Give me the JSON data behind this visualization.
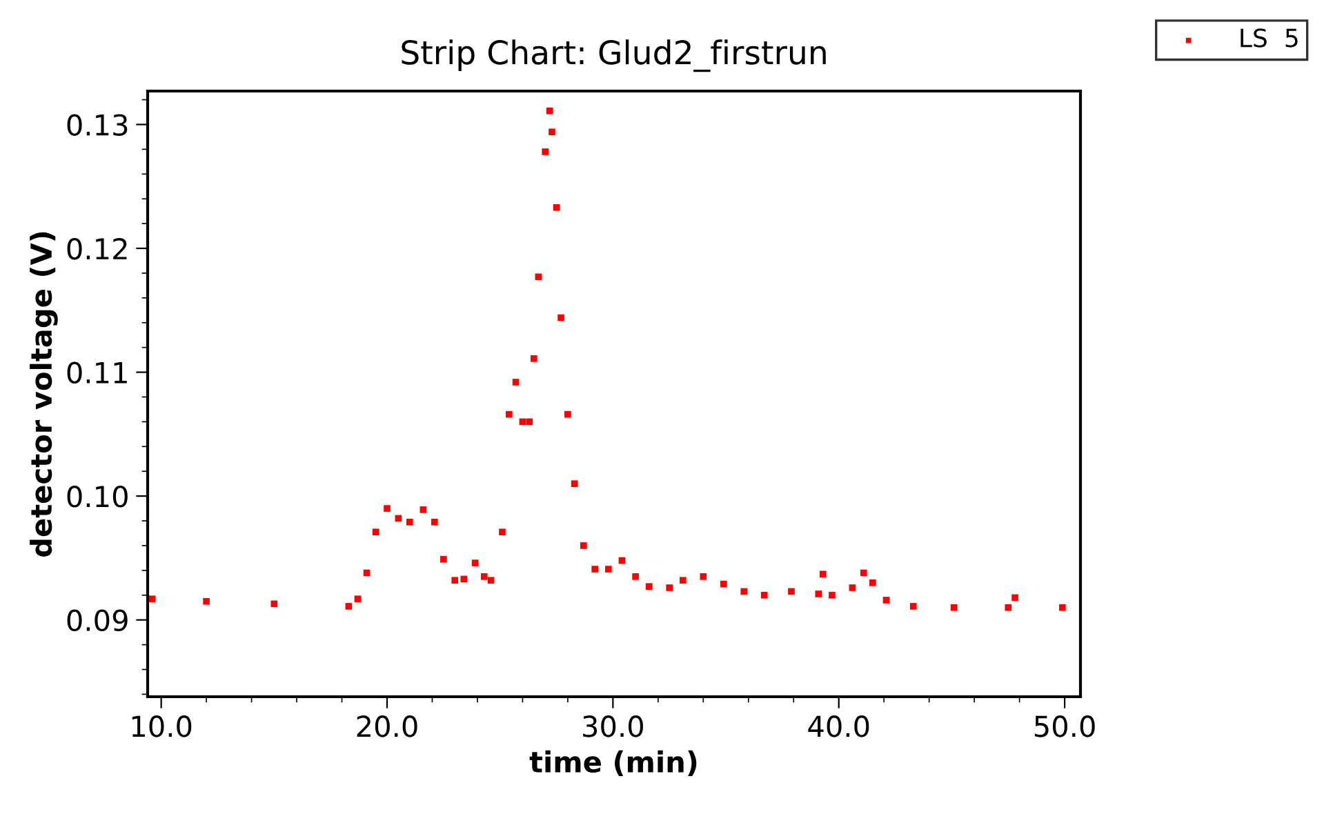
{
  "chart_data": {
    "type": "scatter",
    "title": "Strip Chart: Glud2_firstrun",
    "xlabel": "time (min)",
    "ylabel": "detector voltage (V)",
    "xlim": [
      9.4,
      50.7
    ],
    "ylim": [
      0.0838,
      0.1327
    ],
    "xticks": [
      {
        "value": 10,
        "label": "10.0"
      },
      {
        "value": 20,
        "label": "20.0"
      },
      {
        "value": 30,
        "label": "30.0"
      },
      {
        "value": 40,
        "label": "40.0"
      },
      {
        "value": 50,
        "label": "50.0"
      }
    ],
    "yticks": [
      0.09,
      {
        "value": 0.1,
        "label": "0.10"
      },
      0.11,
      0.12,
      0.13
    ],
    "grid": false,
    "legend": "top right",
    "marker": "square",
    "series": [
      {
        "name": "LS  5",
        "color": "#ff0000",
        "x": [
          9.6,
          12.0,
          15.0,
          18.3,
          18.7,
          19.1,
          19.5,
          20.0,
          20.5,
          21.0,
          21.6,
          22.1,
          22.5,
          23.0,
          23.4,
          23.9,
          24.3,
          24.6,
          25.1,
          25.4,
          25.7,
          26.0,
          26.3,
          26.5,
          26.7,
          27.0,
          27.2,
          27.3,
          27.5,
          27.7,
          28.0,
          28.3,
          28.7,
          29.2,
          29.8,
          30.4,
          31.0,
          31.6,
          32.5,
          33.1,
          34.0,
          34.9,
          35.8,
          36.7,
          37.9,
          39.1,
          39.3,
          39.7,
          40.6,
          41.1,
          41.5,
          42.1,
          43.3,
          45.1,
          47.5,
          47.8,
          49.9
        ],
        "values": [
          0.0917,
          0.0915,
          0.0913,
          0.0911,
          0.0917,
          0.0938,
          0.0971,
          0.099,
          0.0982,
          0.0979,
          0.0989,
          0.0979,
          0.0949,
          0.0932,
          0.0933,
          0.0946,
          0.0935,
          0.0932,
          0.0971,
          0.1066,
          0.1092,
          0.106,
          0.106,
          0.1111,
          0.1177,
          0.1278,
          0.1311,
          0.1294,
          0.1233,
          0.1144,
          0.1066,
          0.101,
          0.096,
          0.0941,
          0.0941,
          0.0948,
          0.0935,
          0.0927,
          0.0926,
          0.0932,
          0.0935,
          0.0929,
          0.0923,
          0.092,
          0.0923,
          0.0921,
          0.0937,
          0.092,
          0.0926,
          0.0938,
          0.093,
          0.0916,
          0.0911,
          0.091,
          0.091,
          0.0918,
          0.091
        ]
      }
    ]
  }
}
